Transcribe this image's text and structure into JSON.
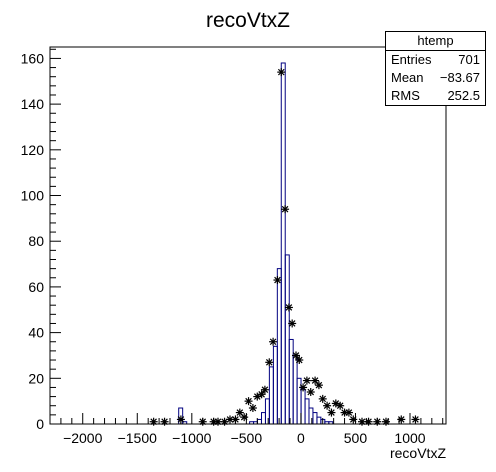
{
  "chart_data": {
    "type": "histogram",
    "title": "recoVtxZ",
    "xlabel": "recoVtxZ",
    "ylabel": "",
    "xlim": [
      -2300,
      1330
    ],
    "ylim": [
      0,
      165
    ],
    "xticks": [
      -2000,
      -1500,
      -1000,
      -500,
      0,
      500,
      1000
    ],
    "yticks": [
      0,
      20,
      40,
      60,
      80,
      100,
      120,
      140,
      160
    ],
    "xtick_labels": [
      "−2000",
      "−1500",
      "−1000",
      "−500",
      "0",
      "500",
      "1000"
    ],
    "ytick_labels": [
      "0",
      "20",
      "40",
      "60",
      "80",
      "100",
      "120",
      "140",
      "160"
    ],
    "bin_width": 36.3,
    "histogram_bins": [
      {
        "x": -1102,
        "y": 7
      },
      {
        "x": -1065,
        "y": 1
      },
      {
        "x": -452,
        "y": 1
      },
      {
        "x": -416,
        "y": 1
      },
      {
        "x": -380,
        "y": 2
      },
      {
        "x": -343,
        "y": 5
      },
      {
        "x": -307,
        "y": 11
      },
      {
        "x": -271,
        "y": 25
      },
      {
        "x": -234,
        "y": 34
      },
      {
        "x": -198,
        "y": 68
      },
      {
        "x": -162,
        "y": 158
      },
      {
        "x": -125,
        "y": 74
      },
      {
        "x": -89,
        "y": 37
      },
      {
        "x": -53,
        "y": 30
      },
      {
        "x": -17,
        "y": 20
      },
      {
        "x": 20,
        "y": 15
      },
      {
        "x": 56,
        "y": 11
      },
      {
        "x": 92,
        "y": 7
      },
      {
        "x": 129,
        "y": 5
      },
      {
        "x": 165,
        "y": 3
      },
      {
        "x": 201,
        "y": 2
      },
      {
        "x": 238,
        "y": 1
      },
      {
        "x": 274,
        "y": 1
      }
    ],
    "markers": [
      {
        "x": -1350,
        "y": 1
      },
      {
        "x": -1250,
        "y": 1
      },
      {
        "x": -1100,
        "y": 2
      },
      {
        "x": -900,
        "y": 1
      },
      {
        "x": -800,
        "y": 1
      },
      {
        "x": -760,
        "y": 1
      },
      {
        "x": -700,
        "y": 1
      },
      {
        "x": -650,
        "y": 2
      },
      {
        "x": -600,
        "y": 2
      },
      {
        "x": -560,
        "y": 5
      },
      {
        "x": -520,
        "y": 3
      },
      {
        "x": -480,
        "y": 10
      },
      {
        "x": -440,
        "y": 7
      },
      {
        "x": -400,
        "y": 12
      },
      {
        "x": -360,
        "y": 13
      },
      {
        "x": -330,
        "y": 15
      },
      {
        "x": -290,
        "y": 27
      },
      {
        "x": -255,
        "y": 36
      },
      {
        "x": -215,
        "y": 63
      },
      {
        "x": -180,
        "y": 154
      },
      {
        "x": -145,
        "y": 94
      },
      {
        "x": -110,
        "y": 51
      },
      {
        "x": -80,
        "y": 44
      },
      {
        "x": -45,
        "y": 30
      },
      {
        "x": -15,
        "y": 28
      },
      {
        "x": 20,
        "y": 16
      },
      {
        "x": 55,
        "y": 19
      },
      {
        "x": 90,
        "y": 14
      },
      {
        "x": 130,
        "y": 19
      },
      {
        "x": 165,
        "y": 17
      },
      {
        "x": 200,
        "y": 11
      },
      {
        "x": 240,
        "y": 8
      },
      {
        "x": 280,
        "y": 5
      },
      {
        "x": 320,
        "y": 9
      },
      {
        "x": 360,
        "y": 8
      },
      {
        "x": 400,
        "y": 5
      },
      {
        "x": 440,
        "y": 5
      },
      {
        "x": 480,
        "y": 2
      },
      {
        "x": 560,
        "y": 1
      },
      {
        "x": 620,
        "y": 1
      },
      {
        "x": 700,
        "y": 1
      },
      {
        "x": 780,
        "y": 1
      },
      {
        "x": 920,
        "y": 2
      },
      {
        "x": 1050,
        "y": 2
      }
    ],
    "grid": false,
    "legend_placement": "top-right"
  },
  "stats": {
    "title": "htemp",
    "rows": [
      {
        "label": "Entries",
        "value": "701"
      },
      {
        "label": "Mean",
        "value": "−83.67"
      },
      {
        "label": "RMS",
        "value": "252.5"
      }
    ]
  }
}
